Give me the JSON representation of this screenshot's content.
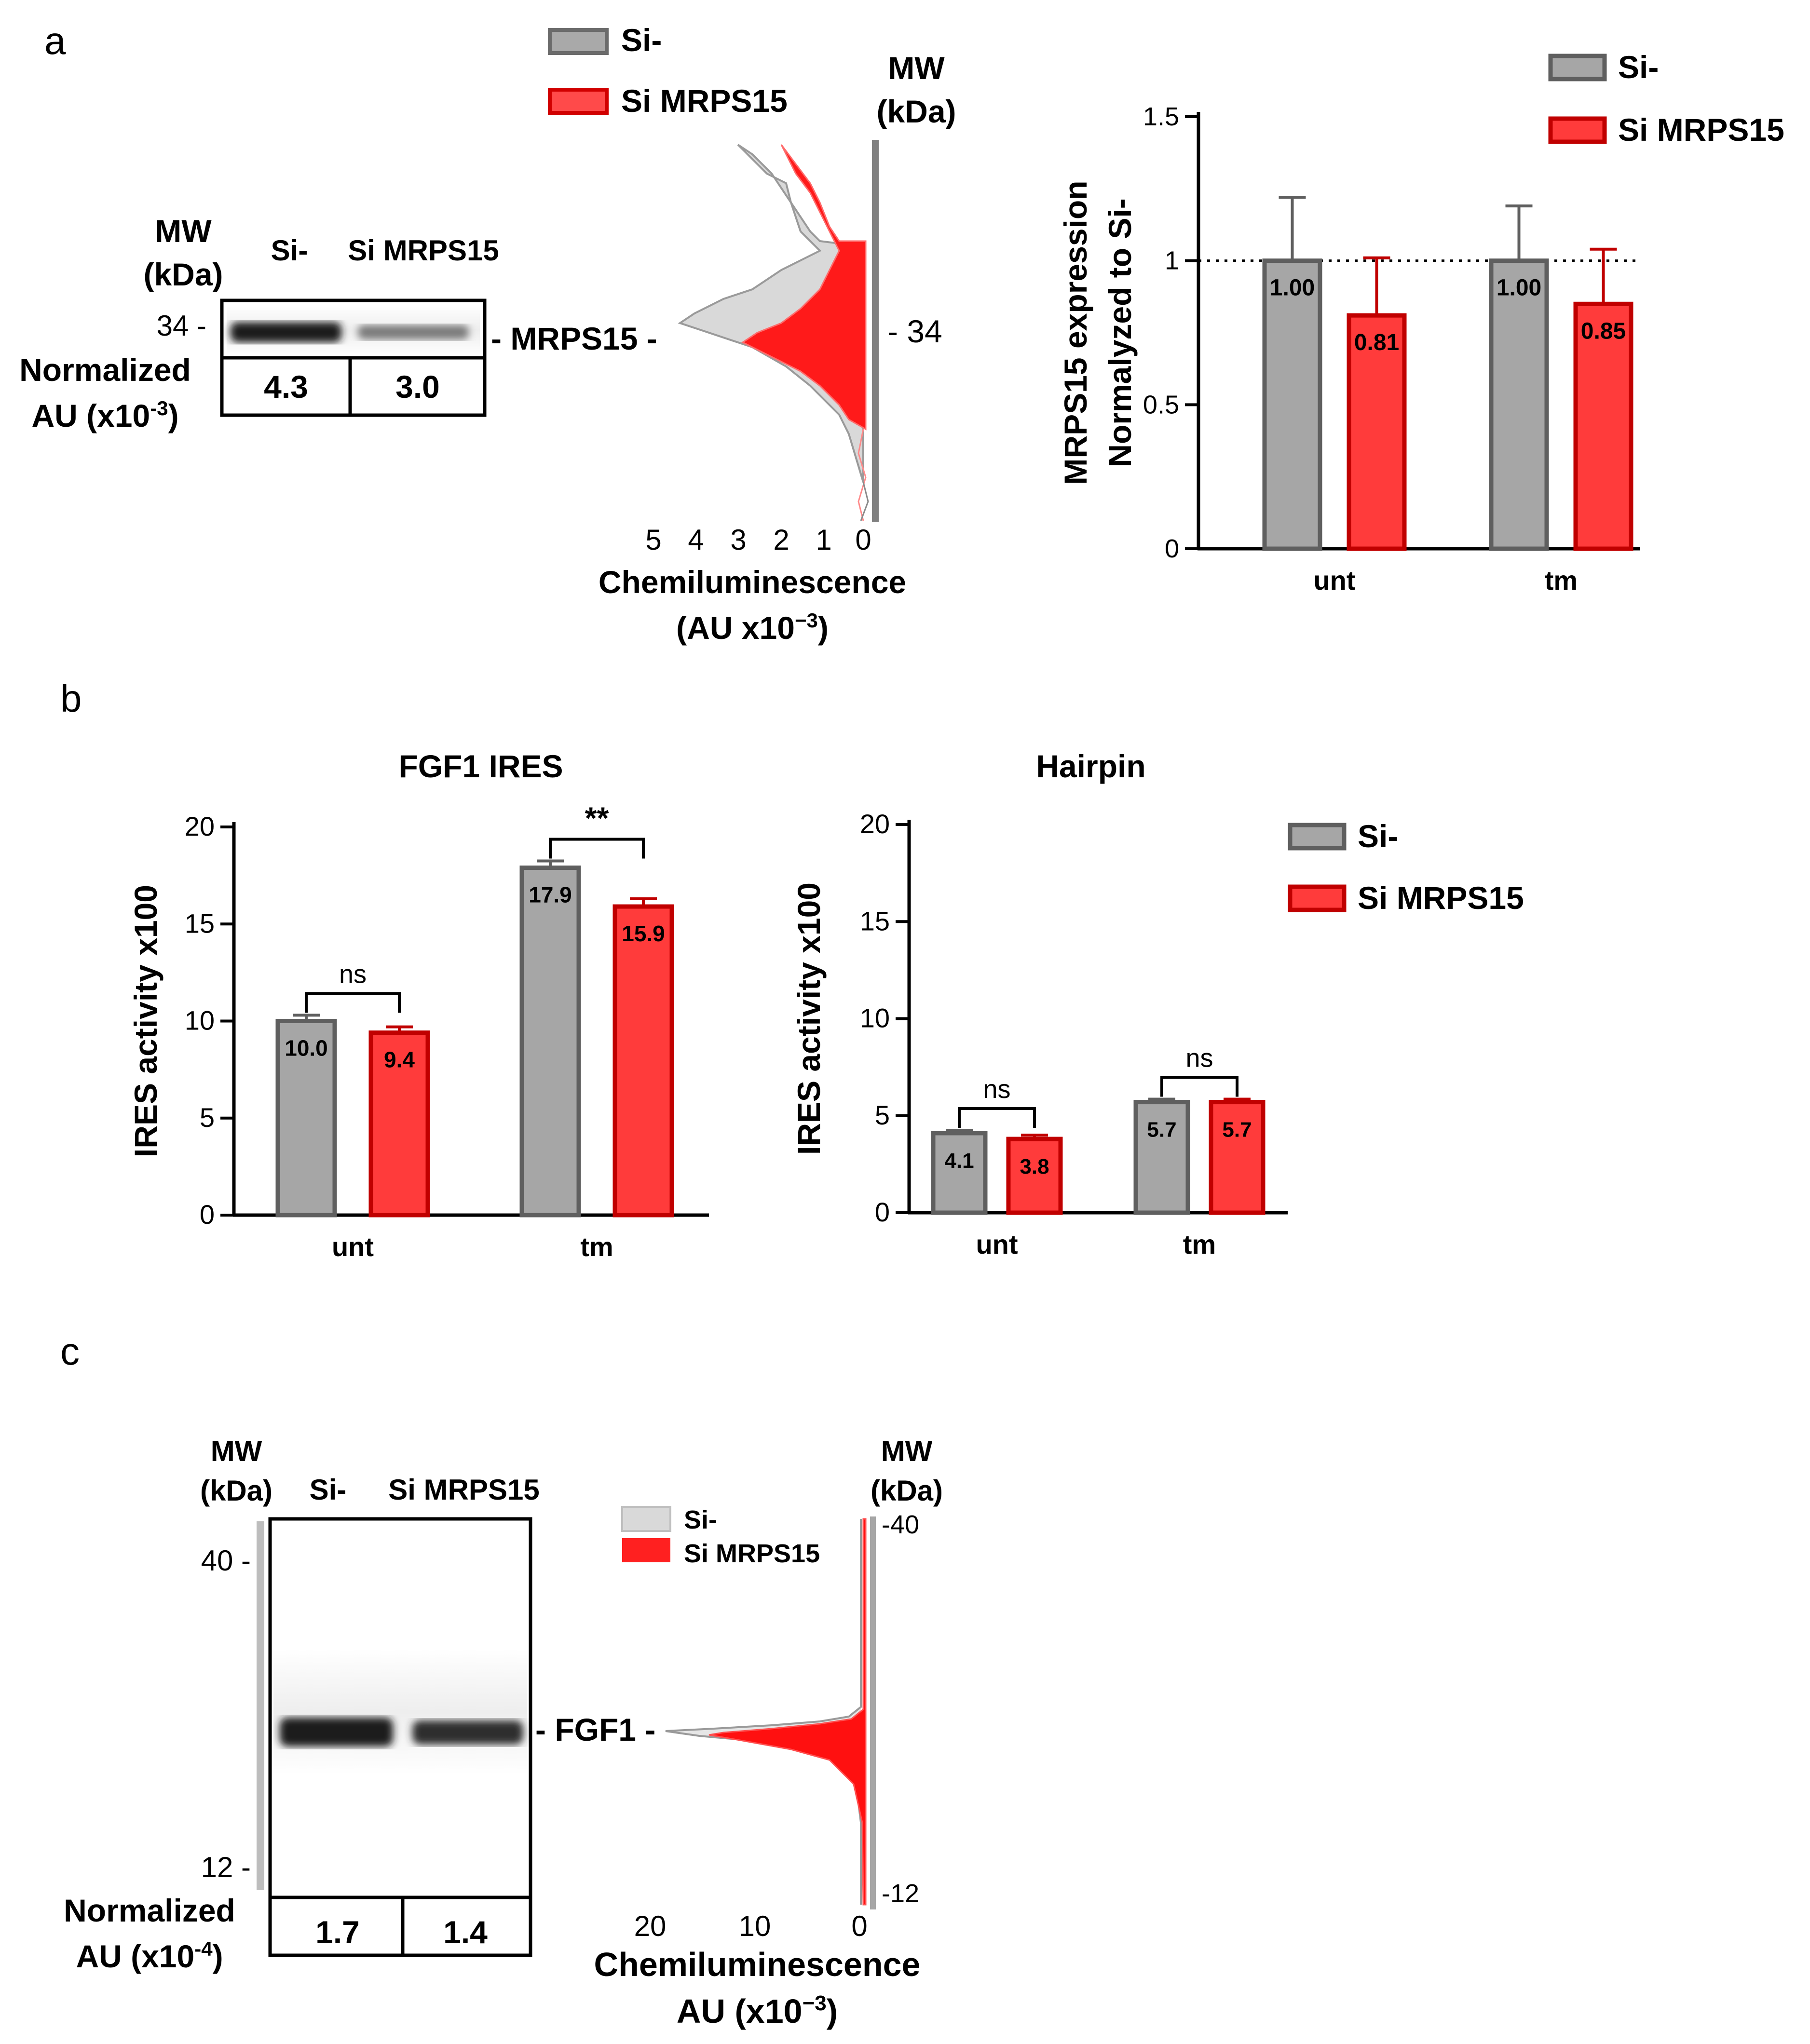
{
  "colors": {
    "gray": "#a6a6a6",
    "gray_edge": "#5f5f5f",
    "red": "#ff3b3b",
    "red_edge": "#c00000",
    "black": "#000000"
  },
  "panel_a": {
    "label": "a",
    "blot": {
      "mw_label": [
        "MW",
        "(kDa)"
      ],
      "lanes": [
        "Si-",
        "Si MRPS15"
      ],
      "marker": "34 -",
      "band_label": "- MRPS15 -",
      "norm_label": [
        "Normalized",
        "AU (x10",
        "-3",
        ")"
      ],
      "norm_values": [
        "4.3",
        "3.0"
      ]
    },
    "electropherogram": {
      "legend": [
        "Si-",
        "Si MRPS15"
      ],
      "mw_label": [
        "MW",
        "(kDa)"
      ],
      "mw_marker": "- 34",
      "x_ticks": [
        "5",
        "4",
        "3",
        "2",
        "1",
        "0"
      ],
      "x_label": [
        "Chemiluminescence",
        "(AU x10",
        "−3",
        ")"
      ]
    }
  },
  "panel_b": {
    "label": "b"
  },
  "panel_c": {
    "label": "c",
    "blot": {
      "mw_label": [
        "MW",
        "(kDa)"
      ],
      "lanes": [
        "Si-",
        "Si  MRPS15"
      ],
      "marker_top": "40 -",
      "marker_bottom": "12 -",
      "band_label": "- FGF1 -",
      "norm_label": [
        "Normalized",
        "AU (x10",
        "-4",
        ")"
      ],
      "norm_values": [
        "1.7",
        "1.4"
      ]
    },
    "electropherogram": {
      "legend": [
        "Si-",
        "Si MRPS15"
      ],
      "mw_label": [
        "MW",
        "(kDa)"
      ],
      "mw_top": "-40",
      "mw_bottom": "-12",
      "x_ticks": [
        "20",
        "10",
        "0"
      ],
      "x_label": [
        "Chemiluminescence",
        "AU (x10",
        "−3",
        ")"
      ]
    }
  },
  "chart_data": [
    {
      "id": "mrps15",
      "type": "bar",
      "title": "",
      "ylabel": [
        "MRPS15 expression",
        "Normalyzed to Si-"
      ],
      "xlabel": "",
      "categories": [
        "unt",
        "tm"
      ],
      "ylim": [
        0,
        1.5
      ],
      "yticks": [
        "0",
        "0.5",
        "1",
        "1.5"
      ],
      "reference_line": 1,
      "legend": [
        "Si-",
        "Si MRPS15"
      ],
      "series": [
        {
          "name": "Si-",
          "values": [
            1.0,
            1.0
          ],
          "labels": [
            "1.00",
            "1.00"
          ],
          "errors": [
            0.22,
            0.19
          ]
        },
        {
          "name": "Si MRPS15",
          "values": [
            0.81,
            0.85
          ],
          "labels": [
            "0.81",
            "0.85"
          ],
          "errors": [
            0.2,
            0.19
          ]
        }
      ]
    },
    {
      "id": "fgf1",
      "type": "bar",
      "title": "FGF1 IRES",
      "ylabel": [
        "IRES activity x100"
      ],
      "xlabel": "",
      "categories": [
        "unt",
        "tm"
      ],
      "ylim": [
        0,
        20
      ],
      "yticks": [
        "0",
        "5",
        "10",
        "15",
        "20"
      ],
      "series": [
        {
          "name": "Si-",
          "values": [
            10.0,
            17.9
          ],
          "labels": [
            "10.0",
            "17.9"
          ],
          "errors": [
            0.3,
            0.35
          ]
        },
        {
          "name": "Si MRPS15",
          "values": [
            9.4,
            15.9
          ],
          "labels": [
            "9.4",
            "15.9"
          ],
          "errors": [
            0.3,
            0.4
          ]
        }
      ],
      "significance": [
        "ns",
        "**"
      ]
    },
    {
      "id": "hairpin",
      "type": "bar",
      "title": "Hairpin",
      "ylabel": [
        "IRES activity x100"
      ],
      "xlabel": "",
      "categories": [
        "unt",
        "tm"
      ],
      "ylim": [
        0,
        20
      ],
      "yticks": [
        "0",
        "5",
        "10",
        "15",
        "20"
      ],
      "legend": [
        "Si-",
        "Si MRPS15"
      ],
      "series": [
        {
          "name": "Si-",
          "values": [
            4.1,
            5.7
          ],
          "labels": [
            "4.1",
            "5.7"
          ],
          "errors": [
            0.15,
            0.15
          ]
        },
        {
          "name": "Si MRPS15",
          "values": [
            3.8,
            5.7
          ],
          "labels": [
            "3.8",
            "5.7"
          ],
          "errors": [
            0.2,
            0.15
          ]
        }
      ],
      "significance": [
        "ns",
        "ns"
      ]
    }
  ]
}
